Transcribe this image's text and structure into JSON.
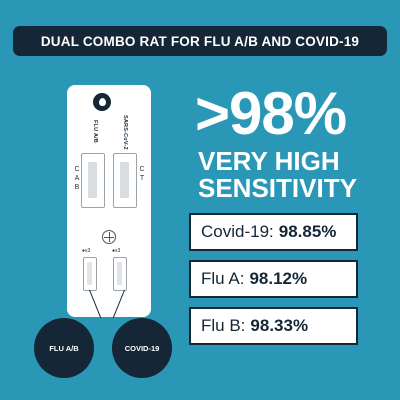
{
  "banner": {
    "title": "DUAL COMBO RAT FOR FLU A/B AND COVID-19"
  },
  "device": {
    "label_left": "FLU A/B",
    "label_right": "SARS-CoV-2",
    "left_letters": "C\nA\nB",
    "right_letters": "C\nT",
    "drop_left": "●x3",
    "drop_right": "●x3"
  },
  "callouts": {
    "left": "FLU A/B",
    "right": "COVID-19"
  },
  "headline": {
    "percent": ">98%",
    "line1": "VERY HIGH",
    "line2": "SENSITIVITY"
  },
  "stats": [
    {
      "label": "Covid-19:",
      "value": "98.85%"
    },
    {
      "label": "Flu A:",
      "value": "98.12%"
    },
    {
      "label": "Flu B:",
      "value": "98.33%"
    }
  ],
  "colors": {
    "background": "#2a97b6",
    "navy": "#152636",
    "white": "#ffffff"
  }
}
